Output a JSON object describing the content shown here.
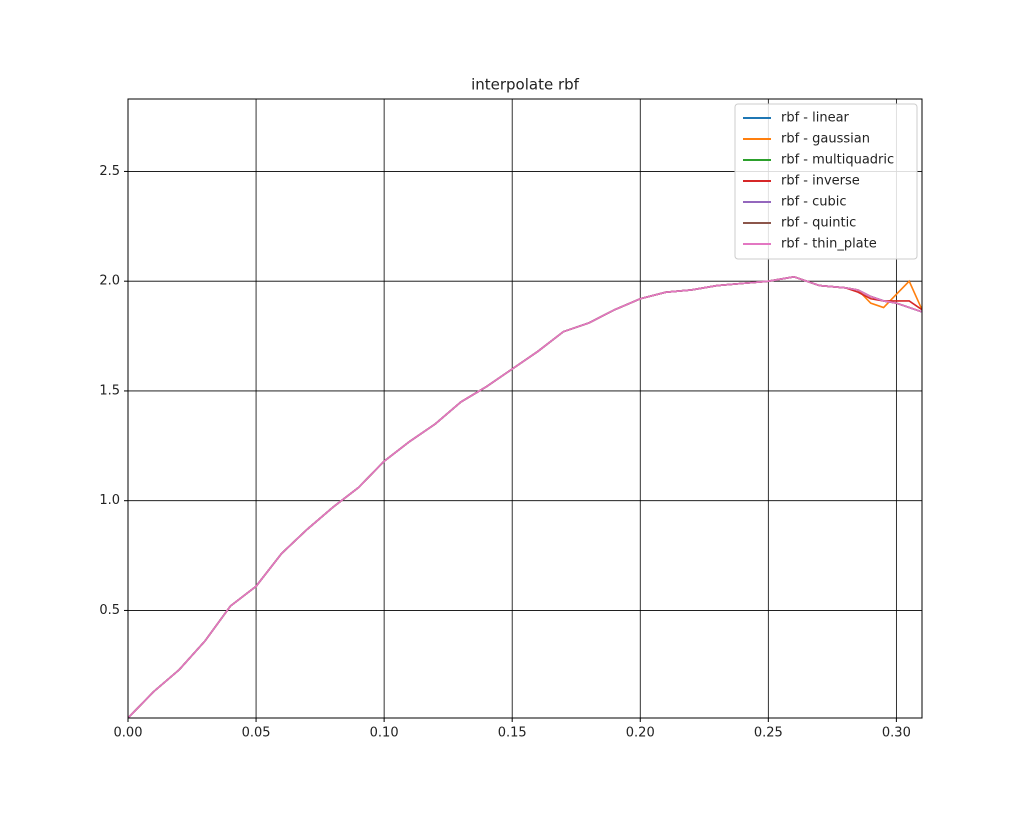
{
  "chart_data": {
    "type": "line",
    "title": "interpolate rbf",
    "x": [
      0,
      0.01,
      0.02,
      0.03,
      0.04,
      0.05,
      0.06,
      0.07,
      0.08,
      0.09,
      0.1,
      0.11,
      0.12,
      0.13,
      0.14,
      0.15,
      0.16,
      0.17,
      0.18,
      0.19,
      0.2,
      0.21,
      0.22,
      0.23,
      0.24,
      0.25,
      0.26,
      0.27,
      0.28,
      0.285,
      0.29,
      0.295,
      0.3,
      0.305,
      0.31
    ],
    "series": [
      {
        "name": "rbf - linear",
        "color": "#1f77b4",
        "values": [
          0.01,
          0.13,
          0.23,
          0.36,
          0.52,
          0.61,
          0.76,
          0.87,
          0.97,
          1.06,
          1.18,
          1.27,
          1.35,
          1.45,
          1.52,
          1.6,
          1.68,
          1.77,
          1.81,
          1.87,
          1.92,
          1.95,
          1.96,
          1.98,
          1.99,
          2.0,
          2.02,
          1.98,
          1.97,
          1.96,
          1.93,
          1.91,
          1.9,
          1.88,
          1.86
        ]
      },
      {
        "name": "rbf - gaussian",
        "color": "#ff7f0e",
        "values": [
          0.01,
          0.13,
          0.23,
          0.36,
          0.52,
          0.61,
          0.76,
          0.87,
          0.97,
          1.06,
          1.18,
          1.27,
          1.35,
          1.45,
          1.52,
          1.6,
          1.68,
          1.77,
          1.81,
          1.87,
          1.92,
          1.95,
          1.96,
          1.98,
          1.99,
          2.0,
          2.02,
          1.98,
          1.97,
          1.96,
          1.9,
          1.88,
          1.94,
          2.0,
          1.87
        ]
      },
      {
        "name": "rbf - multiquadric",
        "color": "#2ca02c",
        "values": [
          0.01,
          0.13,
          0.23,
          0.36,
          0.52,
          0.61,
          0.76,
          0.87,
          0.97,
          1.06,
          1.18,
          1.27,
          1.35,
          1.45,
          1.52,
          1.6,
          1.68,
          1.77,
          1.81,
          1.87,
          1.92,
          1.95,
          1.96,
          1.98,
          1.99,
          2.0,
          2.02,
          1.98,
          1.97,
          1.96,
          1.93,
          1.91,
          1.9,
          1.88,
          1.86
        ]
      },
      {
        "name": "rbf - inverse",
        "color": "#d62728",
        "values": [
          0.01,
          0.13,
          0.23,
          0.36,
          0.52,
          0.61,
          0.76,
          0.87,
          0.97,
          1.06,
          1.18,
          1.27,
          1.35,
          1.45,
          1.52,
          1.6,
          1.68,
          1.77,
          1.81,
          1.87,
          1.92,
          1.95,
          1.96,
          1.98,
          1.99,
          2.0,
          2.02,
          1.98,
          1.97,
          1.95,
          1.92,
          1.91,
          1.91,
          1.91,
          1.87
        ]
      },
      {
        "name": "rbf - cubic",
        "color": "#9467bd",
        "values": [
          0.01,
          0.13,
          0.23,
          0.36,
          0.52,
          0.61,
          0.76,
          0.87,
          0.97,
          1.06,
          1.18,
          1.27,
          1.35,
          1.45,
          1.52,
          1.6,
          1.68,
          1.77,
          1.81,
          1.87,
          1.92,
          1.95,
          1.96,
          1.98,
          1.99,
          2.0,
          2.02,
          1.98,
          1.97,
          1.96,
          1.93,
          1.91,
          1.9,
          1.88,
          1.86
        ]
      },
      {
        "name": "rbf - quintic",
        "color": "#8c564b",
        "values": [
          0.01,
          0.13,
          0.23,
          0.36,
          0.52,
          0.61,
          0.76,
          0.87,
          0.97,
          1.06,
          1.18,
          1.27,
          1.35,
          1.45,
          1.52,
          1.6,
          1.68,
          1.77,
          1.81,
          1.87,
          1.92,
          1.95,
          1.96,
          1.98,
          1.99,
          2.0,
          2.02,
          1.98,
          1.97,
          1.96,
          1.93,
          1.91,
          1.9,
          1.88,
          1.86
        ]
      },
      {
        "name": "rbf - thin_plate",
        "color": "#e377c2",
        "values": [
          0.01,
          0.13,
          0.23,
          0.36,
          0.52,
          0.61,
          0.76,
          0.87,
          0.97,
          1.06,
          1.18,
          1.27,
          1.35,
          1.45,
          1.52,
          1.6,
          1.68,
          1.77,
          1.81,
          1.87,
          1.92,
          1.95,
          1.96,
          1.98,
          1.99,
          2.0,
          2.02,
          1.98,
          1.97,
          1.96,
          1.93,
          1.91,
          1.9,
          1.88,
          1.86
        ]
      }
    ],
    "xlim": [
      0,
      0.31
    ],
    "xticks": [
      {
        "value": 0,
        "label": "0.00"
      },
      {
        "value": 0.05,
        "label": "0.05"
      },
      {
        "value": 0.1,
        "label": "0.10"
      },
      {
        "value": 0.15,
        "label": "0.15"
      },
      {
        "value": 0.2,
        "label": "0.20"
      },
      {
        "value": 0.25,
        "label": "0.25"
      },
      {
        "value": 0.3,
        "label": "0.30"
      }
    ],
    "ylim": [
      0.01,
      2.83
    ],
    "yticks": [
      0.5,
      {
        "value": 1,
        "label": "1.0"
      },
      1.5,
      {
        "value": 2,
        "label": "2.0"
      },
      2.5
    ],
    "grid": true,
    "legend": "upper right"
  }
}
